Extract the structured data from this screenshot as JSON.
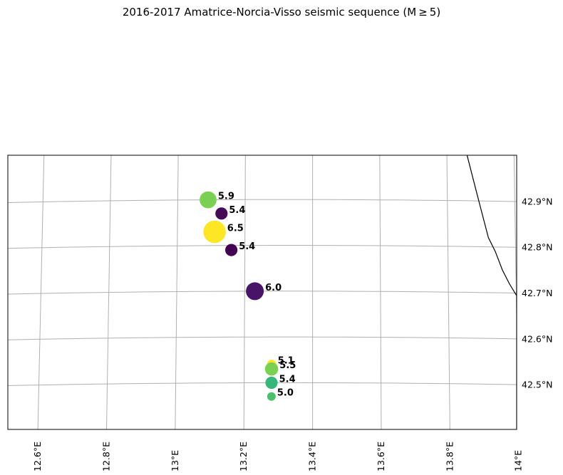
{
  "title": "2016-2017 Amatrice-Norcia-Visso seismic sequence (M ≥ 5)",
  "map": {
    "lon_range": [
      12.5,
      14.0
    ],
    "lat_range": [
      42.4,
      43.0
    ],
    "gridlines": true,
    "lon_ticks": [
      {
        "value": 12.6,
        "label": "12.6°E"
      },
      {
        "value": 12.8,
        "label": "12.8°E"
      },
      {
        "value": 13.0,
        "label": "13°E"
      },
      {
        "value": 13.2,
        "label": "13.2°E"
      },
      {
        "value": 13.4,
        "label": "13.4°E"
      },
      {
        "value": 13.6,
        "label": "13.6°E"
      },
      {
        "value": 13.8,
        "label": "13.8°E"
      },
      {
        "value": 14.0,
        "label": "14°E"
      }
    ],
    "lat_ticks": [
      {
        "value": 42.5,
        "label": "42.5°N"
      },
      {
        "value": 42.6,
        "label": "42.6°N"
      },
      {
        "value": 42.7,
        "label": "42.7°N"
      },
      {
        "value": 42.8,
        "label": "42.8°N"
      },
      {
        "value": 42.9,
        "label": "42.9°N"
      }
    ],
    "coastline": [
      {
        "lon": 13.86,
        "lat": 43.0
      },
      {
        "lon": 13.88,
        "lat": 42.94
      },
      {
        "lon": 13.9,
        "lat": 42.88
      },
      {
        "lon": 13.92,
        "lat": 42.82
      },
      {
        "lon": 13.94,
        "lat": 42.79
      },
      {
        "lon": 13.96,
        "lat": 42.75
      },
      {
        "lon": 13.98,
        "lat": 42.72
      },
      {
        "lon": 14.0,
        "lat": 42.695
      }
    ],
    "colors": {
      "low": "#440154",
      "mid": "#35b779",
      "high": "#fde725"
    }
  },
  "chart_data": {
    "type": "scatter",
    "title": "2016-2017 Amatrice-Norcia-Visso seismic sequence (M ≥ 5)",
    "points": [
      {
        "lon": 13.09,
        "lat": 42.9,
        "magnitude": 5.9,
        "label": "5.9",
        "color": "#7ad151"
      },
      {
        "lon": 13.13,
        "lat": 42.87,
        "magnitude": 5.4,
        "label": "5.4",
        "color": "#450b57"
      },
      {
        "lon": 13.11,
        "lat": 42.83,
        "magnitude": 6.5,
        "label": "6.5",
        "color": "#fde725"
      },
      {
        "lon": 13.16,
        "lat": 42.79,
        "magnitude": 5.4,
        "label": "5.4",
        "color": "#440154"
      },
      {
        "lon": 13.23,
        "lat": 42.7,
        "magnitude": 6.0,
        "label": "6.0",
        "color": "#481467"
      },
      {
        "lon": 13.28,
        "lat": 42.54,
        "magnitude": 5.1,
        "label": "5.1",
        "color": "#fde725"
      },
      {
        "lon": 13.28,
        "lat": 42.53,
        "magnitude": 5.5,
        "label": "5.5",
        "color": "#7ad151"
      },
      {
        "lon": 13.28,
        "lat": 42.5,
        "magnitude": 5.4,
        "label": "5.4",
        "color": "#35b779"
      },
      {
        "lon": 13.28,
        "lat": 42.47,
        "magnitude": 5.0,
        "label": "5.0",
        "color": "#4ac16d"
      }
    ]
  }
}
